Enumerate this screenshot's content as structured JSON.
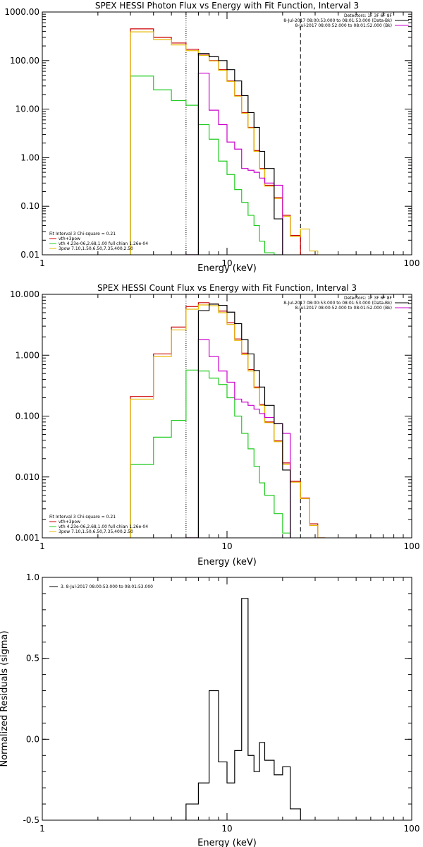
{
  "colors": {
    "frame": "#000000",
    "total": "#cc0000",
    "thermal": "#22cc22",
    "powerlaw": "#e6b800",
    "background": "#cc00cc",
    "data": "#000000"
  },
  "chart_data": [
    {
      "type": "line",
      "title": "SPEX HESSI Photon Flux vs Energy with Fit Function, Interval 3",
      "xlabel": "Energy (keV)",
      "ylabel": "",
      "xscale": "log",
      "yscale": "log",
      "xlim": [
        1,
        100
      ],
      "ylim": [
        0.01,
        1000
      ],
      "xticks": [
        {
          "v": 1,
          "label": "1"
        },
        {
          "v": 10,
          "label": "10"
        },
        {
          "v": 100,
          "label": "100"
        }
      ],
      "yticks": [
        {
          "v": 0.01,
          "label": "0.01"
        },
        {
          "v": 0.1,
          "label": "0.10"
        },
        {
          "v": 1,
          "label": "1.00"
        },
        {
          "v": 10,
          "label": "10.00"
        },
        {
          "v": 100,
          "label": "100.00"
        },
        {
          "v": 1000,
          "label": "1000.00"
        }
      ],
      "edges": [
        3,
        4,
        5,
        6,
        7,
        8,
        9,
        10,
        11,
        12,
        13,
        14,
        15,
        16,
        18,
        20,
        22,
        25,
        28,
        31
      ],
      "vlines": [
        {
          "x": 6,
          "style": "dotted"
        },
        {
          "x": 25,
          "style": "dashed"
        }
      ],
      "header_lines": [
        "Detectors: 1F 3F 6F 8F",
        "8-Jul-2017 08:00:53.000 to 08:01:53.000 (Data-Bk)",
        "8-Jul-2017 08:00:52.000 to 08:01:52.000 (Bk)"
      ],
      "legend_lines": [
        "Fit Interval 3   Chi-square = 0.21",
        "vth+3pow",
        "vth 4.23e-06,2.68,1.00  full chian 1.26e-04",
        "3pow 7.10,1.50,6.50,7.35,400,2.50"
      ],
      "series": [
        {
          "name": "vth+3pow",
          "color": "#cc0000",
          "values": [
            450,
            300,
            230,
            170,
            130,
            100,
            65,
            38,
            19,
            8.5,
            4.2,
            1.4,
            0.6,
            0.27,
            0.15,
            0.065,
            0.025,
            0.01,
            0.006
          ]
        },
        {
          "name": "vth 4.23e-06,2.68,1.00  full chian 1.26e-04",
          "color": "#22cc22",
          "values": [
            48,
            25,
            15,
            12,
            4.8,
            2.4,
            0.85,
            0.45,
            0.22,
            0.12,
            0.065,
            0.04,
            0.019,
            0.011,
            0.006
          ]
        },
        {
          "name": "3pow 7.10,1.50,6.50,7.35,400,2.50",
          "color": "#e6b800",
          "values": [
            390,
            270,
            210,
            160,
            128,
            98,
            63,
            37,
            18.5,
            8.2,
            4.1,
            1.35,
            0.58,
            0.26,
            0.145,
            0.062,
            0.024,
            0.034,
            0.012
          ]
        },
        {
          "name": "Bk",
          "color": "#cc00cc",
          "start": 6,
          "values": [
            0.006,
            55,
            9.5,
            4.8,
            2.1,
            1.5,
            0.6,
            0.55,
            0.5,
            0.38,
            0.3,
            0.27
          ]
        },
        {
          "name": "Data-Bk",
          "color": "#000000",
          "start": 6,
          "values": [
            0.005,
            140,
            120,
            100,
            65,
            38,
            19,
            8.5,
            4.2,
            1.35,
            0.6,
            0.055
          ]
        }
      ]
    },
    {
      "type": "line",
      "title": "SPEX HESSI Count Flux vs Energy with Fit Function, Interval 3",
      "xlabel": "Energy (keV)",
      "ylabel": "",
      "xscale": "log",
      "yscale": "log",
      "xlim": [
        1,
        100
      ],
      "ylim": [
        0.001,
        10
      ],
      "xticks": [
        {
          "v": 1,
          "label": "1"
        },
        {
          "v": 10,
          "label": "10"
        },
        {
          "v": 100,
          "label": "100"
        }
      ],
      "yticks": [
        {
          "v": 0.001,
          "label": "0.001"
        },
        {
          "v": 0.01,
          "label": "0.010"
        },
        {
          "v": 0.1,
          "label": "0.100"
        },
        {
          "v": 1,
          "label": "1.000"
        },
        {
          "v": 10,
          "label": "10.000"
        }
      ],
      "edges": [
        3,
        4,
        5,
        6,
        7,
        8,
        9,
        10,
        11,
        12,
        13,
        14,
        15,
        16,
        18,
        20,
        22,
        25,
        28,
        31,
        34
      ],
      "vlines": [
        {
          "x": 6,
          "style": "dotted"
        },
        {
          "x": 25,
          "style": "dashed"
        }
      ],
      "header_lines": [
        "Detectors: 1F 3F 6F 8F",
        "8-Jul-2017 08:00:53.000 to 08:01:53.000 (Data-Bk)",
        "8-Jul-2017 08:00:52.000 to 08:01:52.000 (Bk)"
      ],
      "legend_lines": [
        "Fit Interval 3   Chi-square = 0.21",
        "vth+3pow",
        "vth 4.23e-06,2.68,1.00  full chian 1.26e-04",
        "3pow 7.10,1.50,6.50,7.35,400,2.50"
      ],
      "series": [
        {
          "name": "vth+3pow",
          "color": "#cc0000",
          "values": [
            0.21,
            1.05,
            2.9,
            6.3,
            7.3,
            6.9,
            5.3,
            3.4,
            1.85,
            1.08,
            0.58,
            0.3,
            0.155,
            0.08,
            0.039,
            0.017,
            0.0085,
            0.0045,
            0.0017,
            0.0009
          ]
        },
        {
          "name": "vth 4.23e-06,2.68,1.00  full chian 1.26e-04",
          "color": "#22cc22",
          "values": [
            0.016,
            0.045,
            0.085,
            0.57,
            0.55,
            0.42,
            0.33,
            0.2,
            0.1,
            0.052,
            0.029,
            0.015,
            0.008,
            0.005,
            0.0025,
            0.0012
          ]
        },
        {
          "name": "3pow 7.10,1.50,6.50,7.35,400,2.50",
          "color": "#e6b800",
          "values": [
            0.19,
            0.95,
            2.6,
            5.7,
            6.7,
            6.5,
            5.0,
            3.2,
            1.75,
            1.02,
            0.55,
            0.29,
            0.15,
            0.078,
            0.038,
            0.016,
            0.0082,
            0.0044,
            0.0016,
            0.0009
          ]
        },
        {
          "name": "Bk",
          "color": "#cc00cc",
          "start": 6,
          "values": [
            0.001,
            1.8,
            0.95,
            0.55,
            0.36,
            0.19,
            0.17,
            0.15,
            0.13,
            0.11,
            0.095,
            0.075,
            0.052
          ]
        },
        {
          "name": "Data-Bk",
          "color": "#000000",
          "start": 6,
          "values": [
            0.001,
            5.4,
            6.9,
            6.6,
            5.1,
            3.3,
            1.8,
            1.05,
            0.56,
            0.3,
            0.15,
            0.075,
            0.013
          ]
        }
      ]
    },
    {
      "type": "line",
      "title": "",
      "xlabel": "Energy (keV)",
      "ylabel": "Normalized Residuals (sigma)",
      "xscale": "log",
      "yscale": "linear",
      "xlim": [
        1,
        100
      ],
      "ylim": [
        -0.5,
        1.0
      ],
      "xticks": [
        {
          "v": 1,
          "label": "1"
        },
        {
          "v": 10,
          "label": "10"
        },
        {
          "v": 100,
          "label": "100"
        }
      ],
      "yticks": [
        {
          "v": -0.5,
          "label": "-0.5"
        },
        {
          "v": 0.0,
          "label": "0.0"
        },
        {
          "v": 0.5,
          "label": "0.5"
        },
        {
          "v": 1.0,
          "label": "1.0"
        }
      ],
      "edges": [
        6,
        7,
        8,
        9,
        10,
        11,
        12,
        13,
        14,
        15,
        16,
        18,
        20,
        22,
        25
      ],
      "legend_lines": [
        "3.  8-Jul-2017 08:00:53.000 to 08:01:53.000"
      ],
      "series": [
        {
          "name": "3.  8-Jul-2017 08:00:53.000 to 08:01:53.000",
          "color": "#000000",
          "values": [
            -0.4,
            -0.27,
            0.3,
            -0.14,
            -0.27,
            -0.07,
            0.87,
            -0.1,
            -0.2,
            -0.02,
            -0.13,
            -0.22,
            -0.17,
            -0.43
          ]
        }
      ]
    }
  ]
}
